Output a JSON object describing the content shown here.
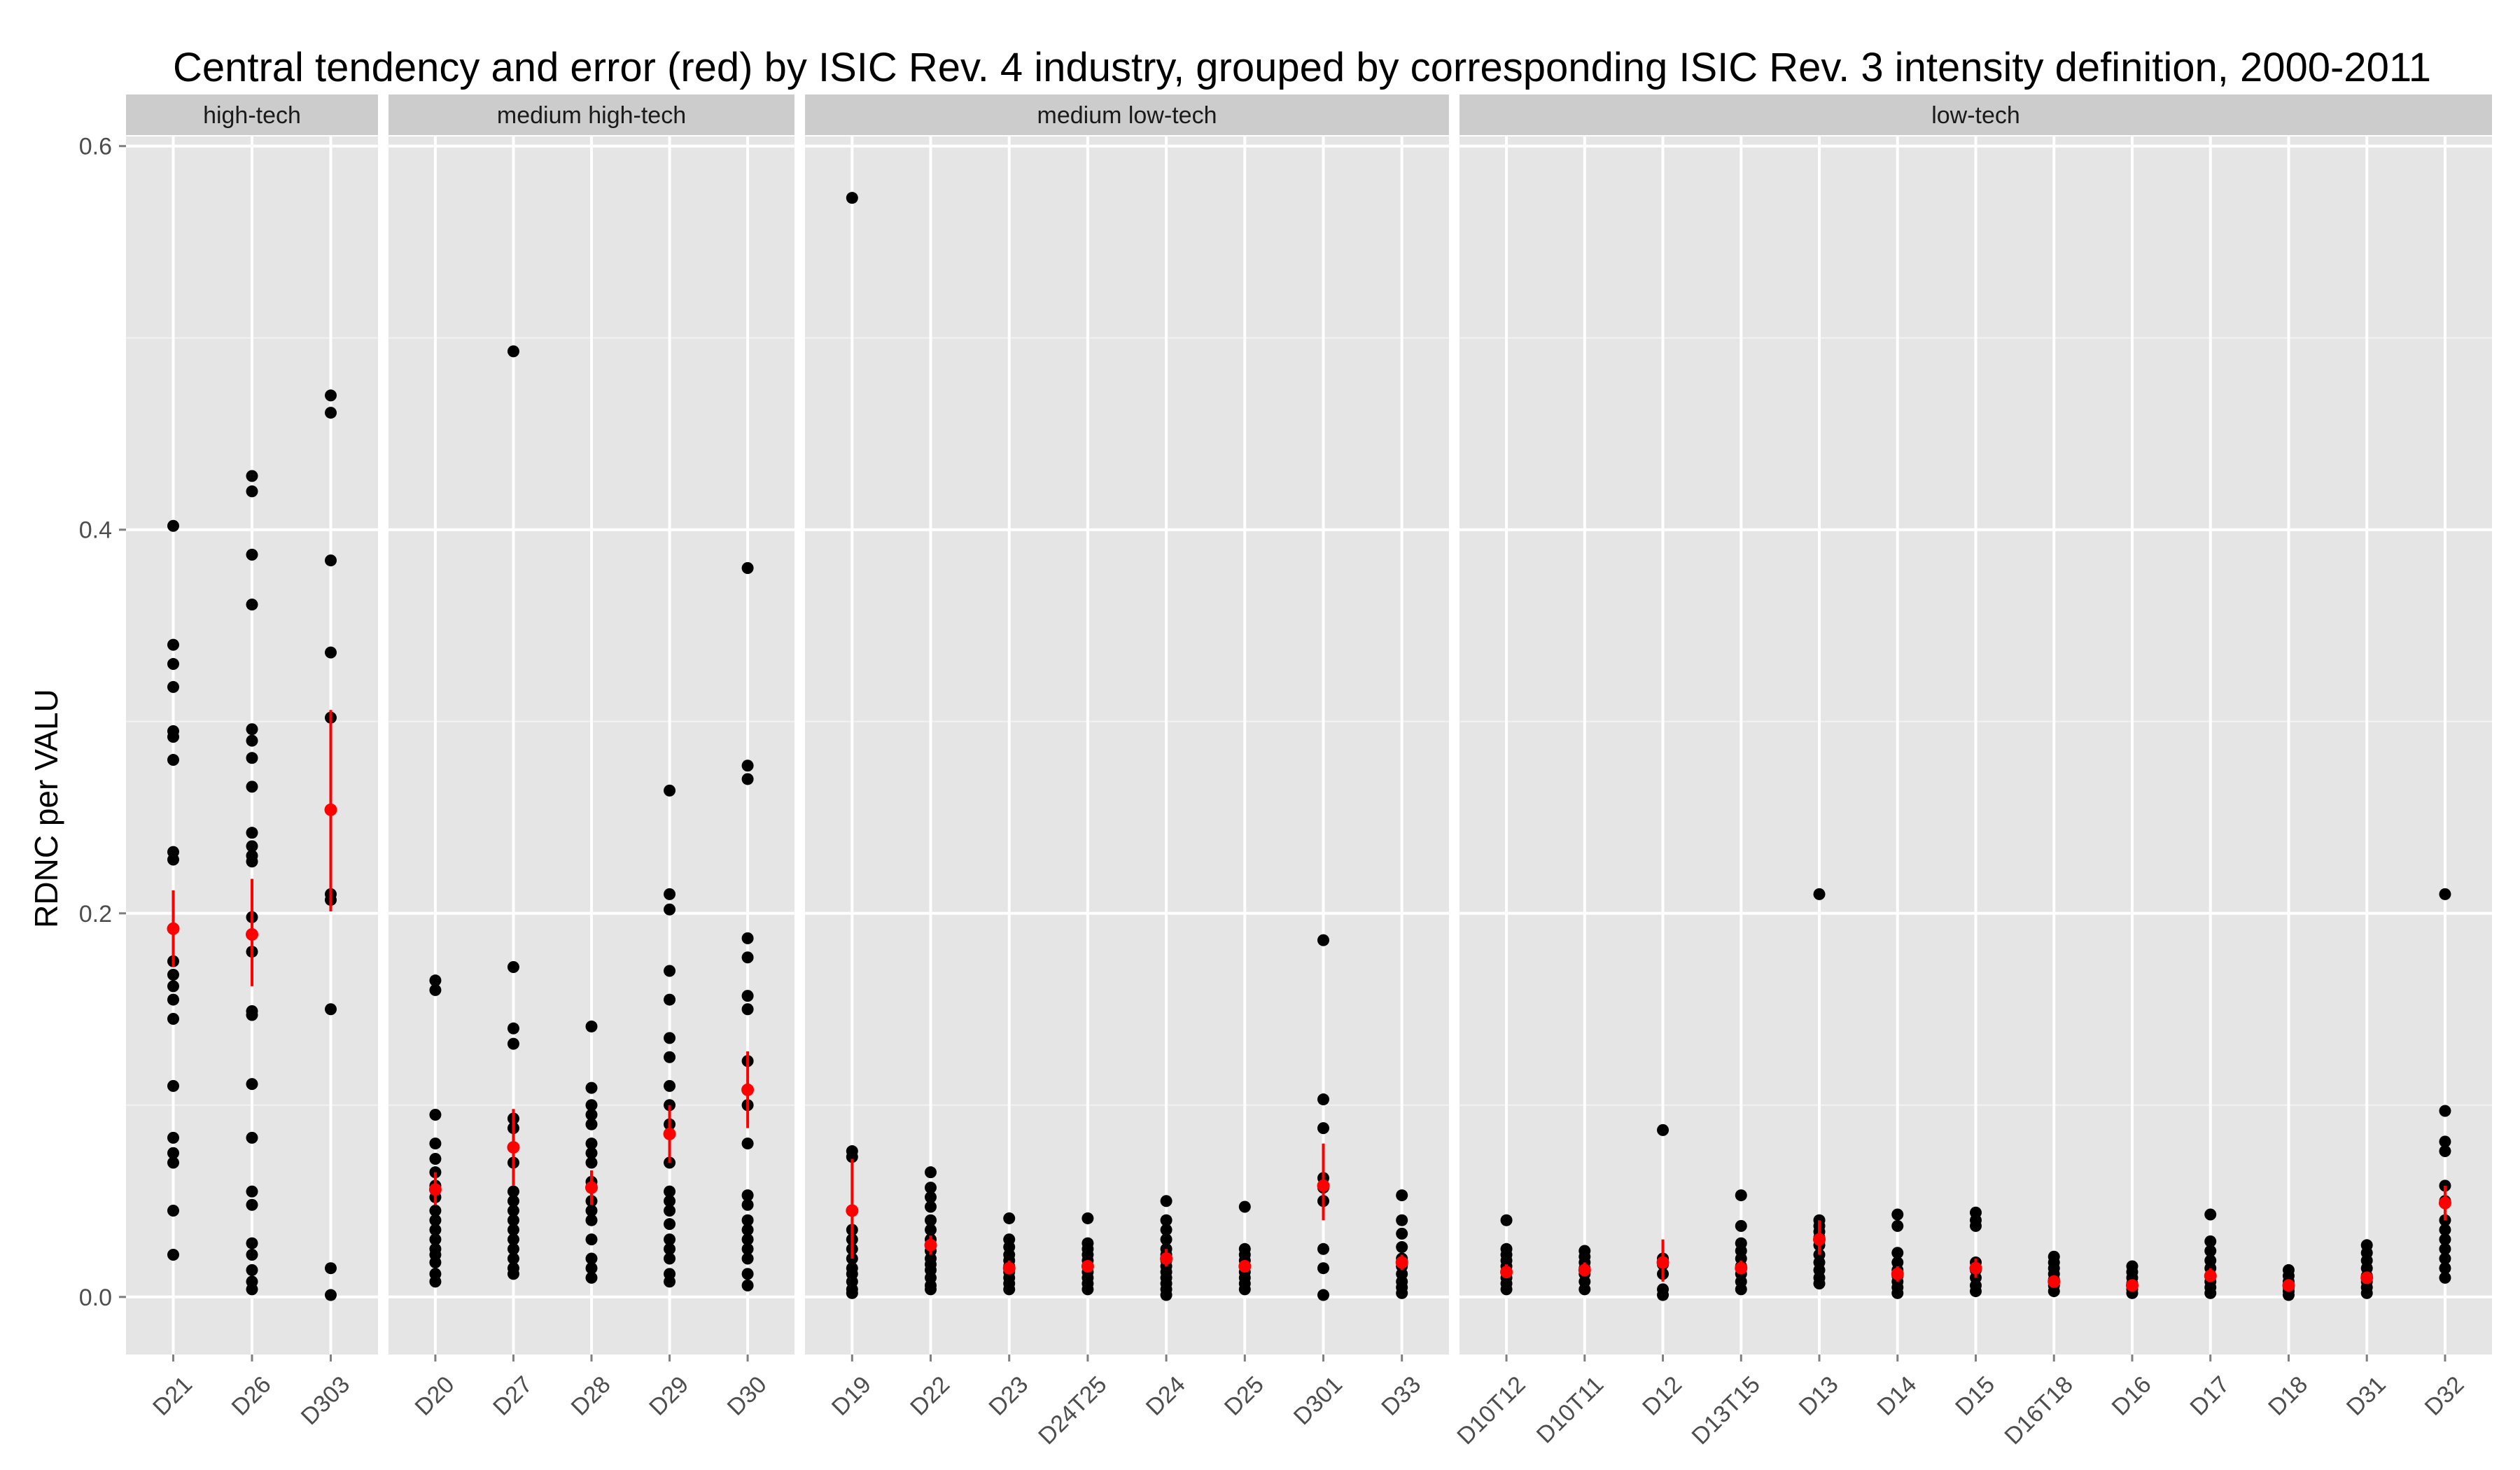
{
  "chart_data": {
    "type": "scatter",
    "title": "Central tendency and error (red) by ISIC Rev. 4 industry, grouped by corresponding ISIC Rev. 3 intensity definition, 2000-2011",
    "xlabel": "",
    "ylabel": "RDNC per VALU",
    "ylim": [
      -0.03,
      0.605
    ],
    "yticks": [
      "0.0",
      "0.2",
      "0.4",
      "0.6"
    ],
    "grid": true,
    "colors": {
      "points": "#000000",
      "error": "#ff0000",
      "panel": "#e5e5e5",
      "strip": "#cccccc",
      "grid": "#ffffff"
    },
    "facets": [
      {
        "label": "high-tech",
        "industries": [
          {
            "code": "D21",
            "points": [
              0.402,
              0.34,
              0.33,
              0.318,
              0.295,
              0.292,
              0.28,
              0.232,
              0.228,
              0.192,
              0.175,
              0.168,
              0.162,
              0.155,
              0.145,
              0.11,
              0.083,
              0.075,
              0.07,
              0.045,
              0.022
            ],
            "mean": 0.192,
            "err": [
              0.172,
              0.212
            ]
          },
          {
            "code": "D26",
            "points": [
              0.428,
              0.42,
              0.387,
              0.361,
              0.296,
              0.29,
              0.281,
              0.266,
              0.242,
              0.235,
              0.23,
              0.227,
              0.198,
              0.18,
              0.149,
              0.147,
              0.111,
              0.083,
              0.055,
              0.048,
              0.028,
              0.022,
              0.014,
              0.008,
              0.004
            ],
            "mean": 0.189,
            "err": [
              0.162,
              0.218
            ]
          },
          {
            "code": "D303",
            "points": [
              0.47,
              0.461,
              0.384,
              0.336,
              0.302,
              0.21,
              0.207,
              0.15,
              0.015,
              0.001
            ],
            "mean": 0.254,
            "err": [
              0.201,
              0.306
            ]
          }
        ]
      },
      {
        "label": "medium high-tech",
        "industries": [
          {
            "code": "D20",
            "points": [
              0.165,
              0.16,
              0.095,
              0.08,
              0.072,
              0.065,
              0.058,
              0.052,
              0.045,
              0.04,
              0.035,
              0.03,
              0.025,
              0.022,
              0.018,
              0.012,
              0.008
            ],
            "mean": 0.056,
            "err": [
              0.048,
              0.065
            ]
          },
          {
            "code": "D27",
            "points": [
              0.493,
              0.172,
              0.14,
              0.132,
              0.093,
              0.088,
              0.078,
              0.07,
              0.055,
              0.05,
              0.045,
              0.04,
              0.035,
              0.03,
              0.025,
              0.02,
              0.015,
              0.012
            ],
            "mean": 0.078,
            "err": [
              0.058,
              0.098
            ]
          },
          {
            "code": "D28",
            "points": [
              0.141,
              0.109,
              0.1,
              0.095,
              0.09,
              0.08,
              0.075,
              0.07,
              0.06,
              0.05,
              0.045,
              0.04,
              0.03,
              0.02,
              0.015,
              0.01
            ],
            "mean": 0.057,
            "err": [
              0.048,
              0.066
            ]
          },
          {
            "code": "D29",
            "points": [
              0.264,
              0.21,
              0.202,
              0.17,
              0.155,
              0.135,
              0.125,
              0.11,
              0.1,
              0.09,
              0.07,
              0.055,
              0.05,
              0.045,
              0.038,
              0.03,
              0.025,
              0.02,
              0.012,
              0.008
            ],
            "mean": 0.085,
            "err": [
              0.07,
              0.1
            ]
          },
          {
            "code": "D30",
            "points": [
              0.38,
              0.277,
              0.27,
              0.187,
              0.177,
              0.157,
              0.15,
              0.123,
              0.1,
              0.08,
              0.053,
              0.048,
              0.04,
              0.035,
              0.03,
              0.025,
              0.02,
              0.012,
              0.006
            ],
            "mean": 0.108,
            "err": [
              0.088,
              0.128
            ]
          }
        ]
      },
      {
        "label": "medium low-tech",
        "industries": [
          {
            "code": "D19",
            "points": [
              0.573,
              0.076,
              0.073,
              0.045,
              0.035,
              0.03,
              0.025,
              0.02,
              0.015,
              0.012,
              0.008,
              0.004,
              0.002
            ],
            "mean": 0.045,
            "err": [
              0.02,
              0.072
            ]
          },
          {
            "code": "D22",
            "points": [
              0.065,
              0.057,
              0.052,
              0.047,
              0.04,
              0.035,
              0.03,
              0.027,
              0.024,
              0.02,
              0.017,
              0.014,
              0.01,
              0.006,
              0.004
            ],
            "mean": 0.027,
            "err": [
              0.022,
              0.032
            ]
          },
          {
            "code": "D23",
            "points": [
              0.041,
              0.03,
              0.026,
              0.022,
              0.019,
              0.016,
              0.013,
              0.01,
              0.007,
              0.004
            ],
            "mean": 0.015,
            "err": [
              0.012,
              0.019
            ]
          },
          {
            "code": "D24T25",
            "points": [
              0.041,
              0.028,
              0.025,
              0.022,
              0.019,
              0.016,
              0.013,
              0.01,
              0.007,
              0.004
            ],
            "mean": 0.016,
            "err": [
              0.013,
              0.019
            ]
          },
          {
            "code": "D24",
            "points": [
              0.05,
              0.04,
              0.035,
              0.03,
              0.025,
              0.022,
              0.019,
              0.016,
              0.013,
              0.01,
              0.007,
              0.004,
              0.001
            ],
            "mean": 0.02,
            "err": [
              0.016,
              0.025
            ]
          },
          {
            "code": "D25",
            "points": [
              0.047,
              0.025,
              0.022,
              0.019,
              0.016,
              0.013,
              0.01,
              0.007,
              0.004
            ],
            "mean": 0.016,
            "err": [
              0.013,
              0.019
            ]
          },
          {
            "code": "D301",
            "points": [
              0.186,
              0.103,
              0.088,
              0.062,
              0.057,
              0.05,
              0.025,
              0.015,
              0.001
            ],
            "mean": 0.058,
            "err": [
              0.04,
              0.08
            ]
          },
          {
            "code": "D33",
            "points": [
              0.053,
              0.04,
              0.033,
              0.026,
              0.02,
              0.016,
              0.012,
              0.008,
              0.005,
              0.002
            ],
            "mean": 0.018,
            "err": [
              0.014,
              0.022
            ]
          }
        ]
      },
      {
        "label": "low-tech",
        "industries": [
          {
            "code": "D10T12",
            "points": [
              0.04,
              0.025,
              0.022,
              0.019,
              0.016,
              0.013,
              0.01,
              0.007,
              0.004
            ],
            "mean": 0.013,
            "err": [
              0.01,
              0.017
            ]
          },
          {
            "code": "D10T11",
            "points": [
              0.024,
              0.021,
              0.018,
              0.015,
              0.012,
              0.008,
              0.004
            ],
            "mean": 0.014,
            "err": [
              0.011,
              0.018
            ]
          },
          {
            "code": "D12",
            "points": [
              0.087,
              0.02,
              0.017,
              0.012,
              0.004,
              0.001
            ],
            "mean": 0.018,
            "err": [
              0.008,
              0.03
            ]
          },
          {
            "code": "D13T15",
            "points": [
              0.053,
              0.037,
              0.028,
              0.024,
              0.02,
              0.016,
              0.012,
              0.008,
              0.004
            ],
            "mean": 0.015,
            "err": [
              0.012,
              0.019
            ]
          },
          {
            "code": "D13",
            "points": [
              0.21,
              0.04,
              0.037,
              0.034,
              0.031,
              0.027,
              0.022,
              0.018,
              0.014,
              0.01,
              0.007
            ],
            "mean": 0.03,
            "err": [
              0.022,
              0.04
            ]
          },
          {
            "code": "D14",
            "points": [
              0.043,
              0.037,
              0.023,
              0.018,
              0.014,
              0.011,
              0.008,
              0.005,
              0.002
            ],
            "mean": 0.012,
            "err": [
              0.008,
              0.016
            ]
          },
          {
            "code": "D15",
            "points": [
              0.044,
              0.04,
              0.037,
              0.018,
              0.014,
              0.01,
              0.006,
              0.003
            ],
            "mean": 0.015,
            "err": [
              0.01,
              0.02
            ]
          },
          {
            "code": "D16T18",
            "points": [
              0.021,
              0.018,
              0.015,
              0.012,
              0.009,
              0.006,
              0.003
            ],
            "mean": 0.008,
            "err": [
              0.006,
              0.011
            ]
          },
          {
            "code": "D16",
            "points": [
              0.016,
              0.013,
              0.01,
              0.007,
              0.004,
              0.002
            ],
            "mean": 0.006,
            "err": [
              0.004,
              0.009
            ]
          },
          {
            "code": "D17",
            "points": [
              0.043,
              0.029,
              0.024,
              0.019,
              0.015,
              0.011,
              0.008,
              0.005,
              0.002
            ],
            "mean": 0.011,
            "err": [
              0.008,
              0.015
            ]
          },
          {
            "code": "D18",
            "points": [
              0.014,
              0.011,
              0.008,
              0.005,
              0.003,
              0.001
            ],
            "mean": 0.006,
            "err": [
              0.004,
              0.008
            ]
          },
          {
            "code": "D31",
            "points": [
              0.027,
              0.023,
              0.019,
              0.015,
              0.011,
              0.008,
              0.005,
              0.002
            ],
            "mean": 0.01,
            "err": [
              0.007,
              0.013
            ]
          },
          {
            "code": "D32",
            "points": [
              0.21,
              0.097,
              0.081,
              0.076,
              0.058,
              0.05,
              0.04,
              0.035,
              0.03,
              0.025,
              0.02,
              0.015,
              0.01
            ],
            "mean": 0.049,
            "err": [
              0.04,
              0.058
            ]
          }
        ]
      }
    ]
  }
}
